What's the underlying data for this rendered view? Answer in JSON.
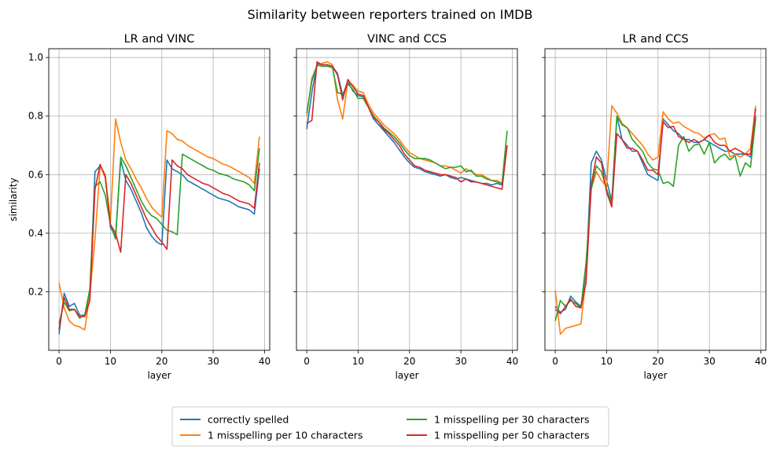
{
  "figure": {
    "suptitle": "Similarity between reporters trained on IMDB",
    "legend": [
      {
        "name": "correctly spelled",
        "color": "#1f77b4"
      },
      {
        "name": "1 misspelling per 10 characters",
        "color": "#ff7f0e"
      },
      {
        "name": "1 misspelling per 30 characters",
        "color": "#2ca02c"
      },
      {
        "name": "1 misspelling per 50 characters",
        "color": "#d62728"
      }
    ],
    "legend_placement": "bottom-center"
  },
  "chart_data": [
    {
      "type": "line",
      "title": "LR and VINC",
      "xlabel": "layer",
      "ylabel": "similarity",
      "xlim": [
        -2,
        41
      ],
      "ylim": [
        0.0,
        1.03
      ],
      "xticks": [
        "0",
        "10",
        "20",
        "30",
        "40"
      ],
      "yticks": [
        "0.2",
        "0.4",
        "0.6",
        "0.8",
        "1.0"
      ],
      "grid": true,
      "x": [
        0,
        1,
        2,
        3,
        4,
        5,
        6,
        7,
        8,
        9,
        10,
        11,
        12,
        13,
        14,
        15,
        16,
        17,
        18,
        19,
        20,
        21,
        22,
        23,
        24,
        25,
        26,
        27,
        28,
        29,
        30,
        31,
        32,
        33,
        34,
        35,
        36,
        37,
        38,
        39
      ],
      "series": [
        {
          "name": "correctly spelled",
          "color": "#1f77b4",
          "values": [
            0.055,
            0.195,
            0.15,
            0.16,
            0.12,
            0.12,
            0.19,
            0.61,
            0.63,
            0.6,
            0.42,
            0.39,
            0.65,
            0.58,
            0.55,
            0.51,
            0.47,
            0.42,
            0.39,
            0.37,
            0.36,
            0.65,
            0.62,
            0.61,
            0.6,
            0.58,
            0.57,
            0.56,
            0.55,
            0.54,
            0.53,
            0.52,
            0.515,
            0.51,
            0.5,
            0.49,
            0.485,
            0.48,
            0.465,
            0.62
          ]
        },
        {
          "name": "1 misspelling per 10 characters",
          "color": "#ff7f0e",
          "values": [
            0.23,
            0.145,
            0.1,
            0.085,
            0.08,
            0.07,
            0.19,
            0.38,
            0.63,
            0.6,
            0.44,
            0.79,
            0.71,
            0.65,
            0.62,
            0.585,
            0.555,
            0.52,
            0.49,
            0.47,
            0.455,
            0.75,
            0.74,
            0.72,
            0.715,
            0.7,
            0.69,
            0.68,
            0.67,
            0.66,
            0.655,
            0.645,
            0.635,
            0.63,
            0.62,
            0.61,
            0.6,
            0.59,
            0.57,
            0.73
          ]
        },
        {
          "name": "1 misspelling per 30 characters",
          "color": "#2ca02c",
          "values": [
            0.09,
            0.165,
            0.135,
            0.14,
            0.11,
            0.12,
            0.21,
            0.56,
            0.575,
            0.53,
            0.43,
            0.38,
            0.66,
            0.63,
            0.59,
            0.55,
            0.51,
            0.48,
            0.46,
            0.45,
            0.43,
            0.41,
            0.405,
            0.395,
            0.67,
            0.66,
            0.65,
            0.64,
            0.63,
            0.62,
            0.615,
            0.605,
            0.6,
            0.595,
            0.585,
            0.58,
            0.575,
            0.565,
            0.545,
            0.69
          ]
        },
        {
          "name": "1 misspelling per 50 characters",
          "color": "#d62728",
          "values": [
            0.07,
            0.18,
            0.14,
            0.14,
            0.115,
            0.115,
            0.17,
            0.55,
            0.635,
            0.59,
            0.43,
            0.4,
            0.335,
            0.6,
            0.57,
            0.53,
            0.49,
            0.45,
            0.42,
            0.39,
            0.37,
            0.345,
            0.65,
            0.63,
            0.62,
            0.6,
            0.59,
            0.58,
            0.57,
            0.565,
            0.555,
            0.545,
            0.535,
            0.53,
            0.52,
            0.51,
            0.505,
            0.5,
            0.485,
            0.64
          ]
        }
      ]
    },
    {
      "type": "line",
      "title": "VINC and CCS",
      "xlabel": "layer",
      "ylabel": "",
      "xlim": [
        -2,
        41
      ],
      "ylim": [
        0.0,
        1.03
      ],
      "xticks": [
        "0",
        "10",
        "20",
        "30",
        "40"
      ],
      "yticks": [
        "",
        "",
        "",
        "",
        ""
      ],
      "grid": true,
      "x": [
        0,
        1,
        2,
        3,
        4,
        5,
        6,
        7,
        8,
        9,
        10,
        11,
        12,
        13,
        14,
        15,
        16,
        17,
        18,
        19,
        20,
        21,
        22,
        23,
        24,
        25,
        26,
        27,
        28,
        29,
        30,
        31,
        32,
        33,
        34,
        35,
        36,
        37,
        38,
        39
      ],
      "series": [
        {
          "name": "correctly spelled",
          "color": "#1f77b4",
          "values": [
            0.755,
            0.88,
            0.98,
            0.975,
            0.975,
            0.97,
            0.945,
            0.87,
            0.92,
            0.885,
            0.87,
            0.865,
            0.83,
            0.79,
            0.77,
            0.75,
            0.73,
            0.71,
            0.685,
            0.66,
            0.64,
            0.625,
            0.62,
            0.61,
            0.605,
            0.6,
            0.595,
            0.6,
            0.59,
            0.585,
            0.59,
            0.585,
            0.58,
            0.575,
            0.57,
            0.57,
            0.565,
            0.57,
            0.565,
            0.7
          ]
        },
        {
          "name": "1 misspelling per 10 characters",
          "color": "#ff7f0e",
          "values": [
            0.8,
            0.93,
            0.97,
            0.98,
            0.985,
            0.975,
            0.855,
            0.79,
            0.92,
            0.905,
            0.885,
            0.88,
            0.84,
            0.81,
            0.79,
            0.77,
            0.755,
            0.74,
            0.72,
            0.695,
            0.675,
            0.665,
            0.655,
            0.65,
            0.645,
            0.64,
            0.63,
            0.63,
            0.625,
            0.615,
            0.605,
            0.62,
            0.61,
            0.6,
            0.6,
            0.59,
            0.58,
            0.58,
            0.57,
            0.7
          ]
        },
        {
          "name": "1 misspelling per 30 characters",
          "color": "#2ca02c",
          "values": [
            0.81,
            0.92,
            0.975,
            0.97,
            0.97,
            0.965,
            0.88,
            0.875,
            0.91,
            0.89,
            0.86,
            0.86,
            0.83,
            0.8,
            0.78,
            0.76,
            0.745,
            0.73,
            0.71,
            0.685,
            0.665,
            0.655,
            0.655,
            0.655,
            0.65,
            0.64,
            0.63,
            0.62,
            0.625,
            0.625,
            0.63,
            0.61,
            0.615,
            0.595,
            0.595,
            0.585,
            0.58,
            0.575,
            0.57,
            0.75
          ]
        },
        {
          "name": "1 misspelling per 50 characters",
          "color": "#d62728",
          "values": [
            0.775,
            0.785,
            0.985,
            0.975,
            0.975,
            0.97,
            0.94,
            0.855,
            0.925,
            0.9,
            0.875,
            0.87,
            0.83,
            0.795,
            0.78,
            0.755,
            0.74,
            0.72,
            0.7,
            0.67,
            0.65,
            0.63,
            0.625,
            0.615,
            0.61,
            0.605,
            0.6,
            0.6,
            0.595,
            0.59,
            0.575,
            0.585,
            0.575,
            0.575,
            0.57,
            0.565,
            0.56,
            0.555,
            0.55,
            0.7
          ]
        }
      ]
    },
    {
      "type": "line",
      "title": "LR and CCS",
      "xlabel": "layer",
      "ylabel": "",
      "xlim": [
        -2,
        41
      ],
      "ylim": [
        0.0,
        1.03
      ],
      "xticks": [
        "0",
        "10",
        "20",
        "30",
        "40"
      ],
      "yticks": [
        "",
        "",
        "",
        "",
        ""
      ],
      "grid": true,
      "x": [
        0,
        1,
        2,
        3,
        4,
        5,
        6,
        7,
        8,
        9,
        10,
        11,
        12,
        13,
        14,
        15,
        16,
        17,
        18,
        19,
        20,
        21,
        22,
        23,
        24,
        25,
        26,
        27,
        28,
        29,
        30,
        31,
        32,
        33,
        34,
        35,
        36,
        37,
        38,
        39
      ],
      "series": [
        {
          "name": "correctly spelled",
          "color": "#1f77b4",
          "values": [
            0.15,
            0.13,
            0.14,
            0.185,
            0.165,
            0.15,
            0.26,
            0.64,
            0.68,
            0.65,
            0.58,
            0.51,
            0.8,
            0.72,
            0.7,
            0.68,
            0.68,
            0.64,
            0.6,
            0.59,
            0.58,
            0.79,
            0.77,
            0.75,
            0.74,
            0.72,
            0.72,
            0.71,
            0.71,
            0.72,
            0.71,
            0.7,
            0.69,
            0.68,
            0.68,
            0.67,
            0.67,
            0.67,
            0.66,
            0.8
          ]
        },
        {
          "name": "1 misspelling per 10 characters",
          "color": "#ff7f0e",
          "values": [
            0.205,
            0.055,
            0.075,
            0.08,
            0.085,
            0.09,
            0.25,
            0.55,
            0.61,
            0.58,
            0.56,
            0.835,
            0.81,
            0.775,
            0.76,
            0.74,
            0.72,
            0.7,
            0.67,
            0.65,
            0.66,
            0.815,
            0.79,
            0.775,
            0.78,
            0.765,
            0.755,
            0.745,
            0.74,
            0.725,
            0.735,
            0.74,
            0.72,
            0.725,
            0.66,
            0.67,
            0.66,
            0.67,
            0.69,
            0.835
          ]
        },
        {
          "name": "1 misspelling per 30 characters",
          "color": "#2ca02c",
          "values": [
            0.1,
            0.17,
            0.15,
            0.17,
            0.16,
            0.145,
            0.3,
            0.55,
            0.63,
            0.61,
            0.55,
            0.5,
            0.8,
            0.77,
            0.76,
            0.72,
            0.7,
            0.68,
            0.64,
            0.62,
            0.615,
            0.57,
            0.575,
            0.56,
            0.7,
            0.73,
            0.68,
            0.7,
            0.705,
            0.67,
            0.71,
            0.64,
            0.66,
            0.67,
            0.65,
            0.665,
            0.595,
            0.64,
            0.625,
            0.79
          ]
        },
        {
          "name": "1 misspelling per 50 characters",
          "color": "#d62728",
          "values": [
            0.14,
            0.125,
            0.15,
            0.175,
            0.15,
            0.145,
            0.23,
            0.565,
            0.66,
            0.64,
            0.54,
            0.49,
            0.74,
            0.72,
            0.69,
            0.69,
            0.68,
            0.65,
            0.615,
            0.615,
            0.6,
            0.78,
            0.76,
            0.765,
            0.73,
            0.72,
            0.71,
            0.72,
            0.71,
            0.72,
            0.735,
            0.71,
            0.7,
            0.7,
            0.68,
            0.69,
            0.68,
            0.67,
            0.67,
            0.825
          ]
        }
      ]
    }
  ]
}
